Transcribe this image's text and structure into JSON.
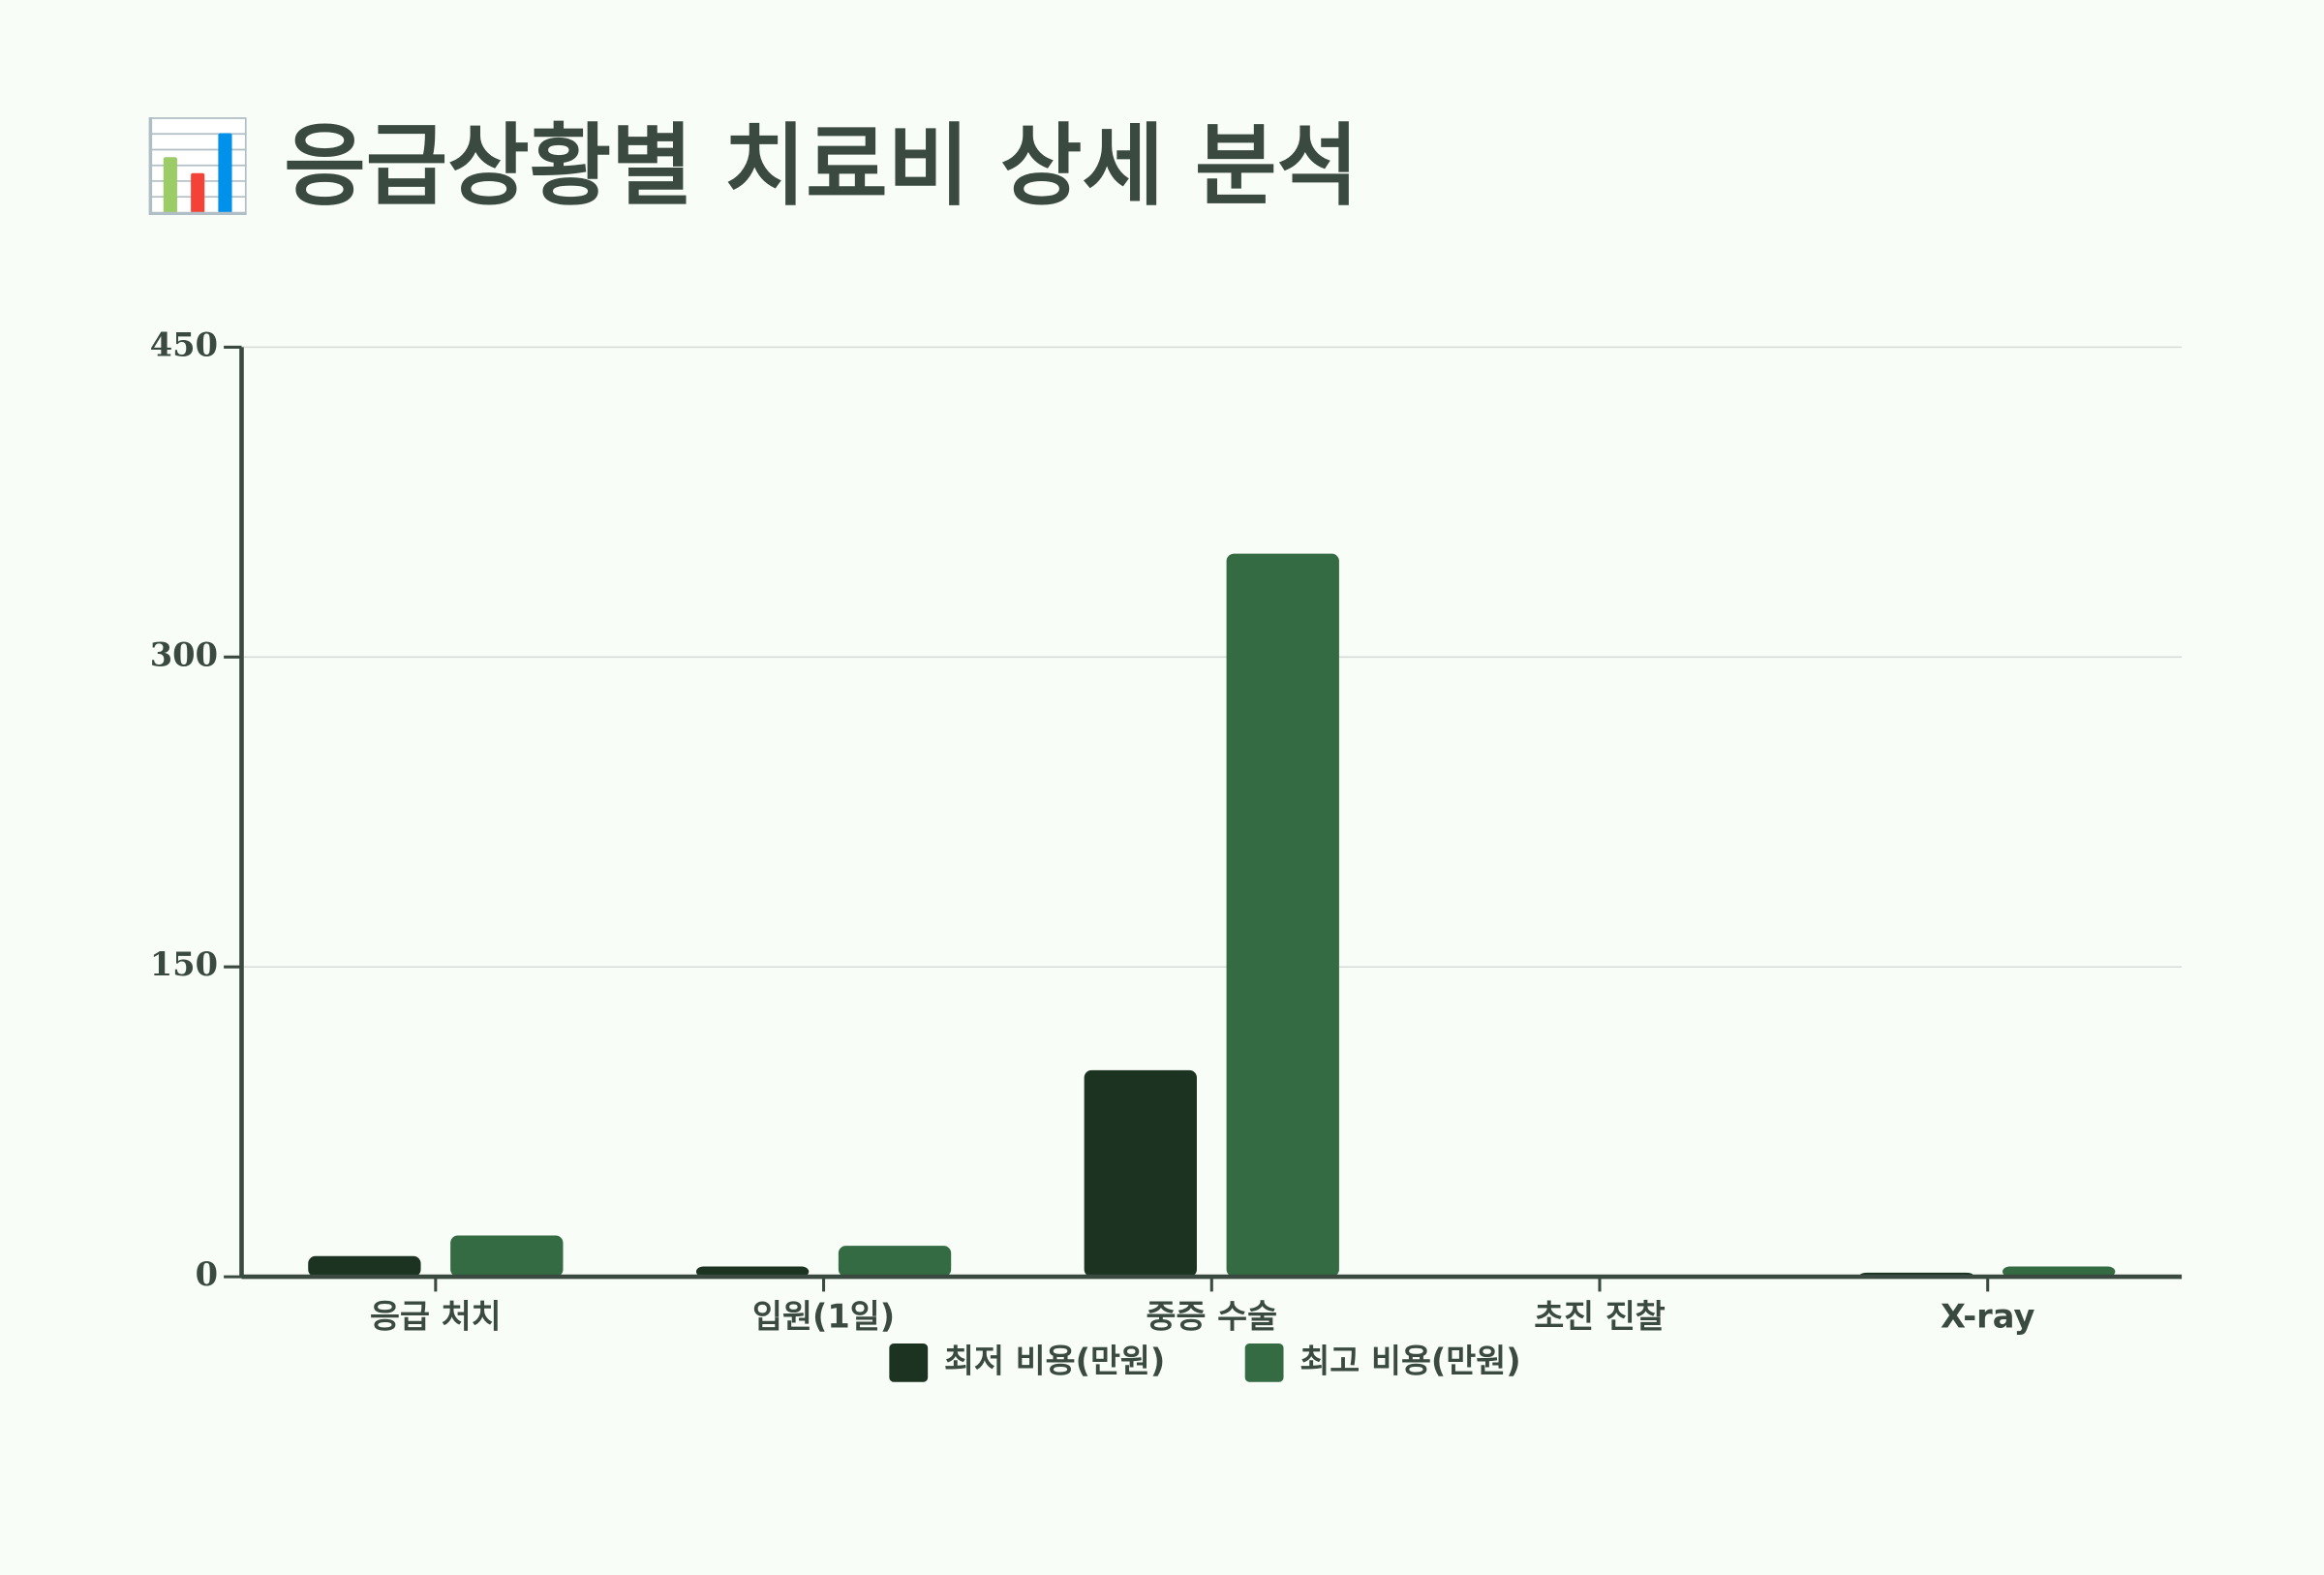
{
  "chart_data": {
    "type": "bar",
    "title": "📊 응급상황별 치료비 상세 분석",
    "categories": [
      "응급 처치",
      "입원(1일)",
      "중증 수술",
      "초진 진찰",
      "X-ray"
    ],
    "series": [
      {
        "name": "최저 비용(만원)",
        "color": "#1b3320",
        "values": [
          10,
          5,
          100,
          0,
          2
        ]
      },
      {
        "name": "최고 비용(만원)",
        "color": "#346b43",
        "values": [
          20,
          15,
          350,
          0,
          5
        ]
      }
    ],
    "ylim": [
      0,
      450
    ],
    "yticks": [
      0,
      150,
      300,
      450
    ],
    "grid": true,
    "legend": "bottom"
  }
}
